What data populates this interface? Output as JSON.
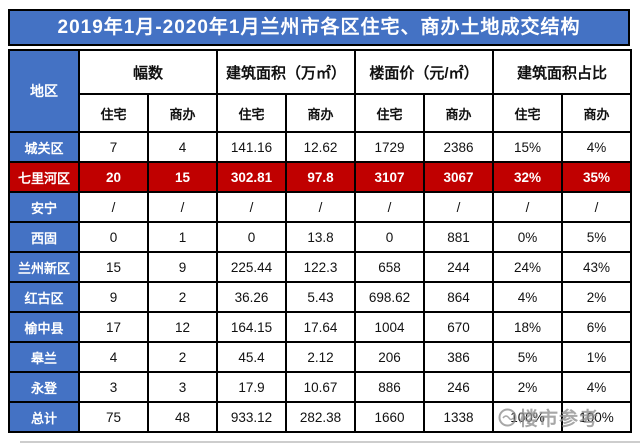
{
  "title": "2019年1月-2020年1月兰州市各区住宅、商办土地成交结构",
  "chart_data": {
    "type": "table",
    "title": "2019年1月-2020年1月兰州市各区住宅、商办土地成交结构",
    "region_header": "地区",
    "group_headers": [
      "幅数",
      "建筑面积（万㎡）",
      "楼面价（元/㎡）",
      "建筑面积占比"
    ],
    "sub_headers": [
      "住宅",
      "商办",
      "住宅",
      "商办",
      "住宅",
      "商办",
      "住宅",
      "商办"
    ],
    "rows": [
      {
        "region": "城关区",
        "values": [
          "7",
          "4",
          "141.16",
          "12.62",
          "1729",
          "2386",
          "15%",
          "4%"
        ],
        "highlight": false
      },
      {
        "region": "七里河区",
        "values": [
          "20",
          "15",
          "302.81",
          "97.8",
          "3107",
          "3067",
          "32%",
          "35%"
        ],
        "highlight": true
      },
      {
        "region": "安宁",
        "values": [
          "/",
          "/",
          "/",
          "/",
          "/",
          "/",
          "/",
          "/"
        ],
        "highlight": false
      },
      {
        "region": "西固",
        "values": [
          "0",
          "1",
          "0",
          "13.8",
          "0",
          "881",
          "0%",
          "5%"
        ],
        "highlight": false
      },
      {
        "region": "兰州新区",
        "values": [
          "15",
          "9",
          "225.44",
          "122.3",
          "658",
          "244",
          "24%",
          "43%"
        ],
        "highlight": false
      },
      {
        "region": "红古区",
        "values": [
          "9",
          "2",
          "36.26",
          "5.43",
          "698.62",
          "864",
          "4%",
          "2%"
        ],
        "highlight": false
      },
      {
        "region": "榆中县",
        "values": [
          "17",
          "12",
          "164.15",
          "17.64",
          "1004",
          "670",
          "18%",
          "6%"
        ],
        "highlight": false
      },
      {
        "region": "皋兰",
        "values": [
          "4",
          "2",
          "45.4",
          "2.12",
          "206",
          "386",
          "5%",
          "1%"
        ],
        "highlight": false
      },
      {
        "region": "永登",
        "values": [
          "3",
          "3",
          "17.9",
          "10.67",
          "886",
          "246",
          "2%",
          "4%"
        ],
        "highlight": false
      },
      {
        "region": "总计",
        "values": [
          "75",
          "48",
          "933.12",
          "282.38",
          "1660",
          "1338",
          "100%",
          "100%"
        ],
        "highlight": false
      }
    ]
  },
  "watermark": {
    "text": "楼市参考"
  },
  "colors": {
    "header_blue": "#4472C4",
    "highlight_red": "#C00000",
    "border_black": "#000000",
    "watermark_gray": "#8f8f8f"
  }
}
